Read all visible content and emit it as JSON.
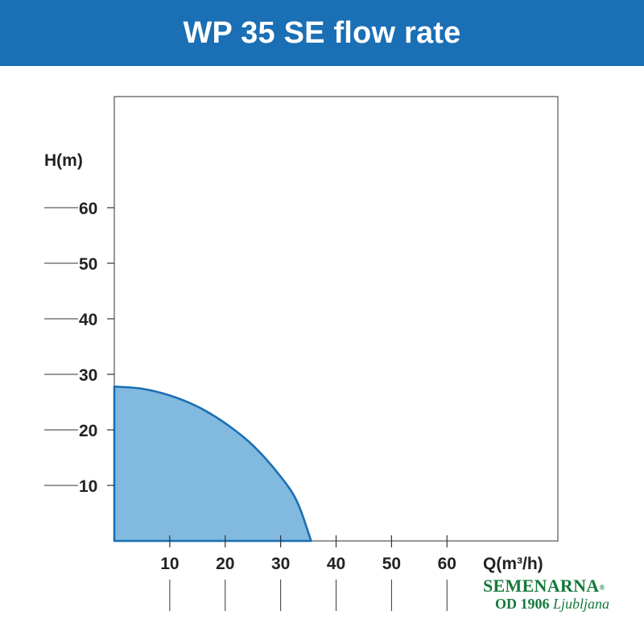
{
  "header": {
    "title": "WP 35 SE flow rate"
  },
  "colors": {
    "header_bg": "#1a6fb5",
    "curve_stroke": "#1a6fb5",
    "curve_fill": "#82b9de",
    "logo_green": "#157a3a"
  },
  "chart_data": {
    "type": "area",
    "title": "WP 35 SE flow rate",
    "xlabel": "Q(m³/h)",
    "ylabel": "H(m)",
    "xlim": [
      0,
      80
    ],
    "ylim": [
      0,
      80
    ],
    "x_ticks": [
      10,
      20,
      30,
      40,
      50,
      60
    ],
    "y_ticks": [
      10,
      20,
      30,
      40,
      50,
      60
    ],
    "grid": false,
    "series": [
      {
        "name": "WP 35 SE",
        "x": [
          0,
          5,
          10,
          15,
          20,
          25,
          30,
          33,
          35.5
        ],
        "y": [
          27.8,
          27.4,
          26.2,
          24.2,
          21.2,
          17.2,
          11.6,
          7.0,
          0
        ]
      }
    ]
  },
  "logo": {
    "name": "SEMENARNA",
    "mark": "®",
    "since": "OD 1906",
    "city": "Ljubljana"
  }
}
